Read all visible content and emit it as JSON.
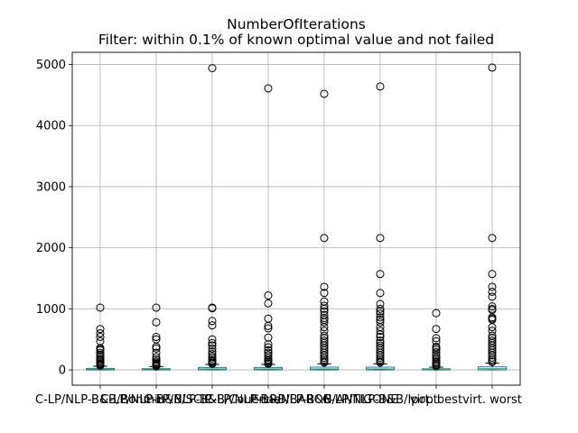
{
  "chart_data": {
    "type": "box",
    "title": "NumberOfIterations",
    "subtitle": "Filter: within 0.1% of known optimal value and not failed",
    "xlabel": "",
    "ylabel": "",
    "ylim": [
      -250,
      5200
    ],
    "yticks": [
      0,
      1000,
      2000,
      3000,
      4000,
      5000
    ],
    "grid": true,
    "colors": {
      "box": "#1f77b4",
      "whisker": "#000000",
      "median": "#2ca02c",
      "flier": "#000000",
      "grid": "#b0b0b0"
    },
    "categories": [
      "C-LP/NLP-B&B/Bonmin",
      "C-LP/NLP-B&B/SCIP",
      "C-LP/NLP-B&B/Couenne",
      "C-LP/NLP-B&B/BARON",
      "C-LP/NLP-B&B/ANTIGONE",
      "C-LP/NLP-B&B/Ipopt",
      "virt. best",
      "virt. worst"
    ],
    "series": [
      {
        "q1": 0,
        "median": 10,
        "q3": 25,
        "whislo": 0,
        "whishi": 60,
        "fliers": [
          1020,
          670,
          600,
          540,
          470,
          360,
          340,
          320,
          280,
          250,
          210,
          180,
          160,
          140,
          120,
          100,
          90,
          80,
          70
        ]
      },
      {
        "q1": 0,
        "median": 8,
        "q3": 20,
        "whislo": 0,
        "whishi": 55,
        "fliers": [
          1020,
          780,
          540,
          500,
          380,
          350,
          280,
          210,
          170,
          140,
          120,
          100,
          90,
          80,
          70,
          60
        ]
      },
      {
        "q1": 0,
        "median": 15,
        "q3": 40,
        "whislo": 0,
        "whishi": 90,
        "fliers": [
          4940,
          1020,
          1010,
          800,
          730,
          500,
          440,
          400,
          350,
          300,
          260,
          220,
          190,
          160,
          140,
          120,
          110,
          100
        ]
      },
      {
        "q1": 0,
        "median": 15,
        "q3": 40,
        "whislo": 0,
        "whishi": 90,
        "fliers": [
          4610,
          1220,
          1090,
          840,
          720,
          680,
          530,
          420,
          370,
          320,
          280,
          240,
          200,
          170,
          150,
          130,
          110,
          100
        ]
      },
      {
        "q1": 0,
        "median": 15,
        "q3": 45,
        "whislo": 0,
        "whishi": 100,
        "fliers": [
          4520,
          2160,
          1360,
          1260,
          1120,
          1050,
          1000,
          960,
          900,
          850,
          820,
          780,
          700,
          640,
          560,
          520,
          480,
          440,
          400,
          360,
          320,
          280,
          240,
          200,
          170,
          140,
          120
        ]
      },
      {
        "q1": 0,
        "median": 15,
        "q3": 45,
        "whislo": 0,
        "whishi": 100,
        "fliers": [
          4640,
          2160,
          1570,
          1260,
          1080,
          1000,
          960,
          920,
          860,
          820,
          780,
          700,
          640,
          580,
          540,
          480,
          440,
          400,
          360,
          320,
          280,
          240,
          200,
          170,
          140,
          120
        ]
      },
      {
        "q1": 0,
        "median": 5,
        "q3": 18,
        "whislo": 0,
        "whishi": 45,
        "fliers": [
          930,
          670,
          520,
          470,
          380,
          360,
          330,
          290,
          240,
          200,
          170,
          140,
          120,
          100,
          80,
          60
        ]
      },
      {
        "q1": 0,
        "median": 20,
        "q3": 50,
        "whislo": 0,
        "whishi": 110,
        "fliers": [
          4950,
          2160,
          1570,
          1360,
          1280,
          1200,
          1040,
          1000,
          980,
          860,
          840,
          820,
          700,
          640,
          560,
          520,
          480,
          440,
          400,
          360,
          320,
          280,
          240,
          200,
          170,
          140,
          130
        ]
      }
    ]
  }
}
